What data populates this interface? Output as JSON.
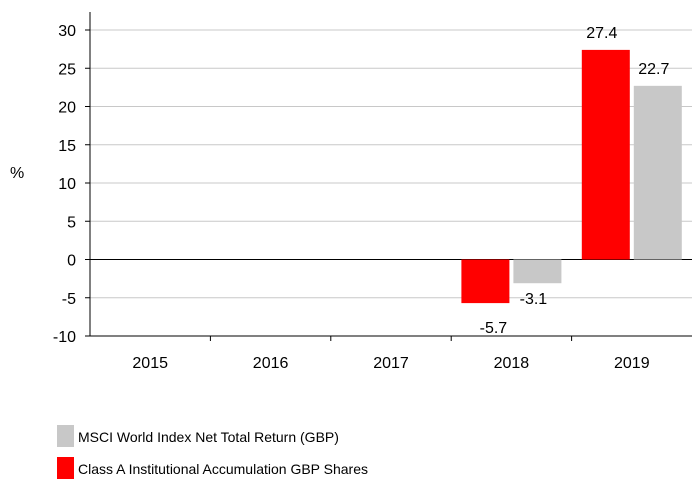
{
  "chart_data": {
    "type": "bar",
    "categories": [
      "2015",
      "2016",
      "2017",
      "2018",
      "2019"
    ],
    "series": [
      {
        "name": "Class A Institutional Accumulation GBP Shares",
        "color": "#ff0000",
        "values": [
          null,
          null,
          null,
          -5.7,
          27.4
        ]
      },
      {
        "name": "MSCI World Index Net Total Return (GBP)",
        "color": "#c8c8c8",
        "values": [
          null,
          null,
          null,
          -3.1,
          22.7
        ]
      }
    ],
    "data_labels": [
      [
        null,
        null,
        null,
        "-5.7",
        "27.4"
      ],
      [
        null,
        null,
        null,
        "-3.1",
        "22.7"
      ]
    ],
    "ylabel": "%",
    "ylim": [
      -10,
      30
    ],
    "yticks": [
      30,
      25,
      20,
      15,
      10,
      5,
      0,
      -5,
      -10
    ],
    "ytick_labels": [
      "30",
      "25",
      "20",
      "15",
      "10",
      "5",
      "0",
      "-5",
      "-10"
    ],
    "grid": true,
    "legend": [
      "MSCI World Index Net Total Return (GBP)",
      "Class A Institutional Accumulation GBP Shares"
    ],
    "legend_placement": "bottom-left"
  }
}
